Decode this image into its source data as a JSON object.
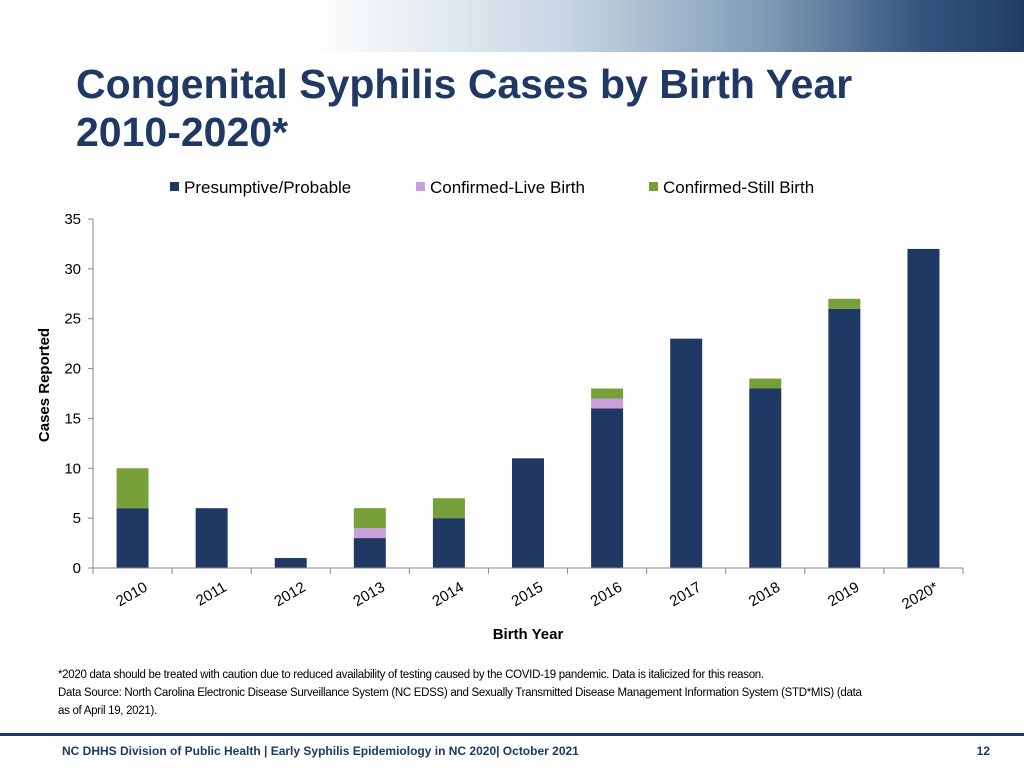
{
  "slide": {
    "title_line1": "Congenital Syphilis Cases by Birth Year",
    "title_line2": "2010-2020*",
    "note": "*2020 data should be treated with caution due to reduced availability of testing caused by the COVID-19 pandemic. Data is italicized for this reason.",
    "source_line1": "Data Source: North Carolina Electronic Disease Surveillance System (NC EDSS)  and Sexually Transmitted Disease Management Information System (STD*MIS) (data",
    "source_line2": "as of April 19, 2021).",
    "footer": "NC DHHS Division of Public Health | Early Syphilis Epidemiology in NC 2020| October 2021",
    "page_number": "12"
  },
  "chart_data": {
    "type": "bar",
    "stacked": true,
    "title": "",
    "xlabel": "Birth Year",
    "ylabel": "Cases Reported",
    "ylim": [
      0,
      35
    ],
    "yticks": [
      0,
      5,
      10,
      15,
      20,
      25,
      30,
      35
    ],
    "legend_position": "top",
    "categories": [
      "2010",
      "2011",
      "2012",
      "2013",
      "2014",
      "2015",
      "2016",
      "2017",
      "2018",
      "2019",
      "2020*"
    ],
    "series": [
      {
        "name": "Presumptive/Probable",
        "color": "#1f3864",
        "values": [
          6,
          6,
          1,
          3,
          5,
          11,
          16,
          23,
          18,
          26,
          32
        ]
      },
      {
        "name": "Confirmed-Live Birth",
        "color": "#c9a0dc",
        "values": [
          0,
          0,
          0,
          1,
          0,
          0,
          1,
          0,
          0,
          0,
          0
        ]
      },
      {
        "name": "Confirmed-Still Birth",
        "color": "#77a03a",
        "values": [
          4,
          0,
          0,
          2,
          2,
          0,
          1,
          0,
          1,
          1,
          0
        ]
      }
    ]
  }
}
